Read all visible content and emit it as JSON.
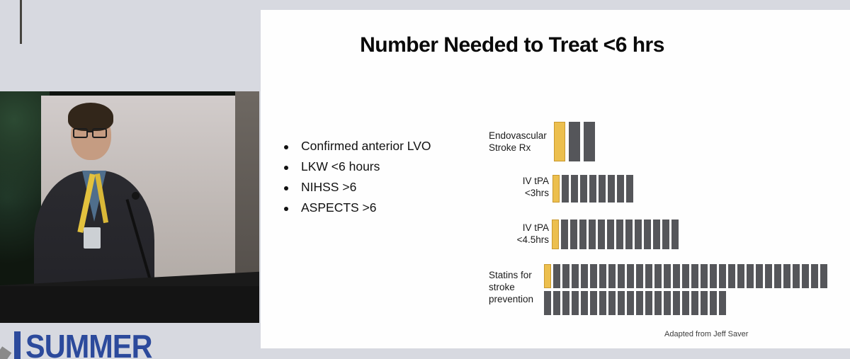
{
  "stage": {
    "logo": {
      "text": "SUMMER",
      "dot_colors": [
        "#983091",
        "#e9a93e"
      ]
    }
  },
  "slide": {
    "title": "Number Needed to Treat <6 hrs",
    "bullets": [
      "Confirmed anterior LVO",
      "LKW <6 hours",
      "NIHSS >6",
      "ASPECTS >6"
    ],
    "attribution": "Adapted from Jeff Saver"
  },
  "chart_data": {
    "type": "bar",
    "subtype": "icon-array-pictograph",
    "title": "Number Needed to Treat <6 hrs",
    "legend": {
      "highlight_color": "#ecbf4e",
      "other_color": "#55565a",
      "legend_shown": false
    },
    "rows": [
      {
        "id": "endovascular-stroke-rx",
        "label": [
          "Endovascular",
          "Stroke Rx"
        ],
        "total": 3,
        "highlighted": 1,
        "nnt": 3
      },
      {
        "id": "iv-tpa-under-3hrs",
        "label": [
          "IV tPA",
          "<3hrs"
        ],
        "total": 9,
        "highlighted": 1,
        "nnt": 9
      },
      {
        "id": "iv-tpa-under-4-5hrs",
        "label": [
          "IV tPA",
          "<4.5hrs"
        ],
        "total": 14,
        "highlighted": 1,
        "nnt": 14
      },
      {
        "id": "statins-stroke-prevention",
        "label": [
          "Statins for",
          "stroke",
          "prevention"
        ],
        "total": 51,
        "highlighted": 1,
        "nnt": 51,
        "wrap_at": 31
      }
    ],
    "annotation": "Adapted from Jeff Saver"
  }
}
